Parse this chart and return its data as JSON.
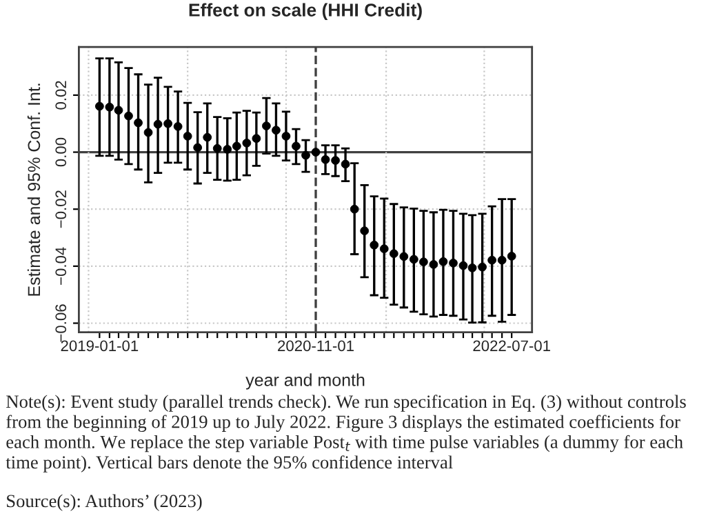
{
  "chart_data": {
    "type": "scatter",
    "title": "Effect on scale (HHI Credit)",
    "xlabel": "year and month",
    "ylabel": "Estimate and 95% Conf. Int.",
    "x": [
      "2019-01-01",
      "2019-02-01",
      "2019-03-01",
      "2019-04-01",
      "2019-05-01",
      "2019-06-01",
      "2019-07-01",
      "2019-08-01",
      "2019-09-01",
      "2019-10-01",
      "2019-11-01",
      "2019-12-01",
      "2020-01-01",
      "2020-02-01",
      "2020-03-01",
      "2020-04-01",
      "2020-05-01",
      "2020-06-01",
      "2020-07-01",
      "2020-08-01",
      "2020-09-01",
      "2020-10-01",
      "2020-11-01",
      "2020-12-01",
      "2021-01-01",
      "2021-02-01",
      "2021-03-01",
      "2021-04-01",
      "2021-05-01",
      "2021-06-01",
      "2021-07-01",
      "2021-08-01",
      "2021-09-01",
      "2021-10-01",
      "2021-11-01",
      "2021-12-01",
      "2022-01-01",
      "2022-02-01",
      "2022-03-01",
      "2022-04-01",
      "2022-05-01",
      "2022-06-01",
      "2022-07-01"
    ],
    "series": [
      {
        "color": "#000000",
        "values": [
          0.0161,
          0.0158,
          0.0147,
          0.0127,
          0.0103,
          0.0069,
          0.0098,
          0.01,
          0.009,
          0.0056,
          0.0016,
          0.0052,
          0.0013,
          0.001,
          0.0021,
          0.0032,
          0.0048,
          0.0092,
          0.0077,
          0.0056,
          0.0021,
          -0.0011,
          0.0,
          -0.0026,
          -0.0029,
          -0.0042,
          -0.02,
          -0.0276,
          -0.0326,
          -0.0339,
          -0.0356,
          -0.0366,
          -0.0376,
          -0.0385,
          -0.0394,
          -0.0384,
          -0.0389,
          -0.0398,
          -0.0406,
          -0.0403,
          -0.0379,
          -0.0379,
          -0.0365
        ],
        "errors": [
          [
            -0.0013,
            0.0329
          ],
          [
            -0.0013,
            0.0329
          ],
          [
            -0.0026,
            0.0315
          ],
          [
            -0.0042,
            0.0295
          ],
          [
            -0.0061,
            0.0273
          ],
          [
            -0.0106,
            0.0237
          ],
          [
            -0.0073,
            0.0261
          ],
          [
            -0.0037,
            0.0229
          ],
          [
            -0.0037,
            0.0213
          ],
          [
            -0.0061,
            0.0173
          ],
          [
            -0.011,
            0.014
          ],
          [
            -0.0073,
            0.0171
          ],
          [
            -0.0097,
            0.0123
          ],
          [
            -0.01,
            0.0119
          ],
          [
            -0.0097,
            0.0139
          ],
          [
            -0.0081,
            0.0145
          ],
          [
            -0.0048,
            0.0139
          ],
          [
            -0.0005,
            0.019
          ],
          [
            -0.0013,
            0.0171
          ],
          [
            -0.0029,
            0.0142
          ],
          [
            -0.0042,
            0.0081
          ],
          [
            -0.0069,
            0.0042
          ],
          null,
          [
            -0.0077,
            0.0024
          ],
          [
            -0.0084,
            0.0024
          ],
          [
            -0.0102,
            0.0013
          ],
          [
            -0.0358,
            -0.0039
          ],
          [
            -0.0439,
            -0.0116
          ],
          [
            -0.0502,
            -0.0155
          ],
          [
            -0.0511,
            -0.0163
          ],
          [
            -0.0535,
            -0.0182
          ],
          [
            -0.0545,
            -0.0194
          ],
          [
            -0.056,
            -0.0198
          ],
          [
            -0.0569,
            -0.0206
          ],
          [
            -0.0577,
            -0.0211
          ],
          [
            -0.0571,
            -0.0202
          ],
          [
            -0.0574,
            -0.0206
          ],
          [
            -0.0587,
            -0.0216
          ],
          [
            -0.0598,
            -0.0221
          ],
          [
            -0.0597,
            -0.0216
          ],
          [
            -0.0574,
            -0.019
          ],
          [
            -0.0595,
            -0.0165
          ],
          [
            -0.0571,
            -0.0165
          ]
        ]
      }
    ],
    "marker": "circle",
    "xlim": [
      "2018-10-29",
      "2022-09-02"
    ],
    "xticks": [
      {
        "value": "2019-01-01",
        "label": "2019-01-01"
      },
      {
        "value": "2019-02-01",
        "label": null
      },
      {
        "value": "2019-03-01",
        "label": null
      },
      {
        "value": "2019-04-01",
        "label": null
      },
      {
        "value": "2019-05-01",
        "label": null
      },
      {
        "value": "2019-06-01",
        "label": null
      },
      {
        "value": "2019-07-01",
        "label": null
      },
      {
        "value": "2019-08-01",
        "label": null
      },
      {
        "value": "2019-09-01",
        "label": null
      },
      {
        "value": "2019-10-01",
        "label": null
      },
      {
        "value": "2019-11-01",
        "label": null
      },
      {
        "value": "2019-12-01",
        "label": null
      },
      {
        "value": "2020-01-01",
        "label": null
      },
      {
        "value": "2020-02-01",
        "label": null
      },
      {
        "value": "2020-03-01",
        "label": null
      },
      {
        "value": "2020-04-01",
        "label": null
      },
      {
        "value": "2020-05-01",
        "label": null
      },
      {
        "value": "2020-06-01",
        "label": null
      },
      {
        "value": "2020-07-01",
        "label": null
      },
      {
        "value": "2020-08-01",
        "label": null
      },
      {
        "value": "2020-09-01",
        "label": null
      },
      {
        "value": "2020-10-01",
        "label": null
      },
      {
        "value": "2020-11-01",
        "label": "2020-11-01"
      },
      {
        "value": "2020-12-01",
        "label": null
      },
      {
        "value": "2021-01-01",
        "label": null
      },
      {
        "value": "2021-02-01",
        "label": null
      },
      {
        "value": "2021-03-01",
        "label": null
      },
      {
        "value": "2021-04-01",
        "label": null
      },
      {
        "value": "2021-05-01",
        "label": null
      },
      {
        "value": "2021-06-01",
        "label": null
      },
      {
        "value": "2021-07-01",
        "label": null
      },
      {
        "value": "2021-08-01",
        "label": null
      },
      {
        "value": "2021-09-01",
        "label": null
      },
      {
        "value": "2021-10-01",
        "label": null
      },
      {
        "value": "2021-11-01",
        "label": null
      },
      {
        "value": "2021-12-01",
        "label": null
      },
      {
        "value": "2022-01-01",
        "label": null
      },
      {
        "value": "2022-02-01",
        "label": null
      },
      {
        "value": "2022-03-01",
        "label": null
      },
      {
        "value": "2022-04-01",
        "label": null
      },
      {
        "value": "2022-05-01",
        "label": null
      },
      {
        "value": "2022-06-01",
        "label": null
      },
      {
        "value": "2022-07-01",
        "label": "2022-07-01"
      }
    ],
    "ylim": [
      -0.0632,
      0.0369
    ],
    "yticks": [
      {
        "value": -0.06,
        "label": "−0.06"
      },
      {
        "value": -0.04,
        "label": "−0.04"
      },
      {
        "value": -0.02,
        "label": "−0.02"
      },
      {
        "value": 0.0,
        "label": "0.00"
      },
      {
        "value": 0.02,
        "label": "0.02"
      }
    ],
    "grid": "y",
    "ref_lines": [
      {
        "axis": "y",
        "value": 0.0,
        "color": "#404040",
        "line_style": "solid"
      },
      {
        "axis": "x",
        "value": "2020-11-01",
        "color": "#404040",
        "line_style": "dashed"
      },
      {
        "axis": "x",
        "value": "2018-11-28",
        "color": "#c8c8c8",
        "line_style": "dotted"
      },
      {
        "axis": "x",
        "value": "2019-10-01",
        "color": "#c8c8c8",
        "line_style": "dotted"
      },
      {
        "axis": "x",
        "value": "2020-08-01",
        "color": "#c8c8c8",
        "line_style": "dotted"
      },
      {
        "axis": "x",
        "value": "2021-06-07",
        "color": "#c8c8c8",
        "line_style": "dotted"
      },
      {
        "axis": "x",
        "value": "2022-04-07",
        "color": "#c8c8c8",
        "line_style": "dotted"
      }
    ],
    "annotations": [
      "Note(s): Event study (parallel trends check). We run specification in Eq. (3) without controls from the beginning of 2019 up to July 2022. Figure 3 displays the estimated coefficients for each month. We replace the step variable Post$_{t}$ with time pulse variables (a dummy for each time point). Vertical bars denote the 95% confidence interval",
      "Source(s): Authors’ (2023)"
    ]
  }
}
